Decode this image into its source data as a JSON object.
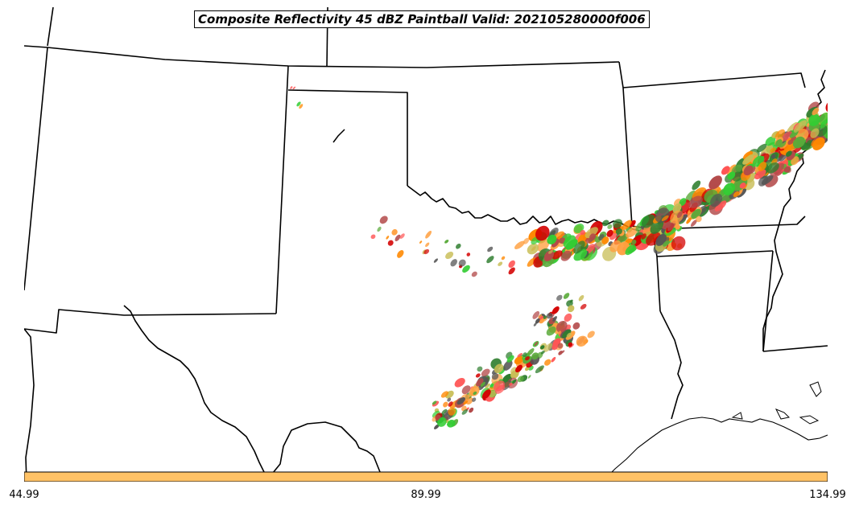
{
  "map": {
    "title": "Composite Reflectivity 45 dBZ Paintball Valid: 202105280000f006",
    "colorbar": {
      "color": "#ffc266",
      "tick_labels": [
        "44.99",
        "89.99",
        "134.99"
      ]
    },
    "paintball_palette": [
      "#d40000",
      "#ff5555",
      "#ff8800",
      "#ffa040",
      "#2e7d2e",
      "#5aaa3a",
      "#33cc33",
      "#c8bd55",
      "#b34a4a",
      "#555555"
    ]
  }
}
